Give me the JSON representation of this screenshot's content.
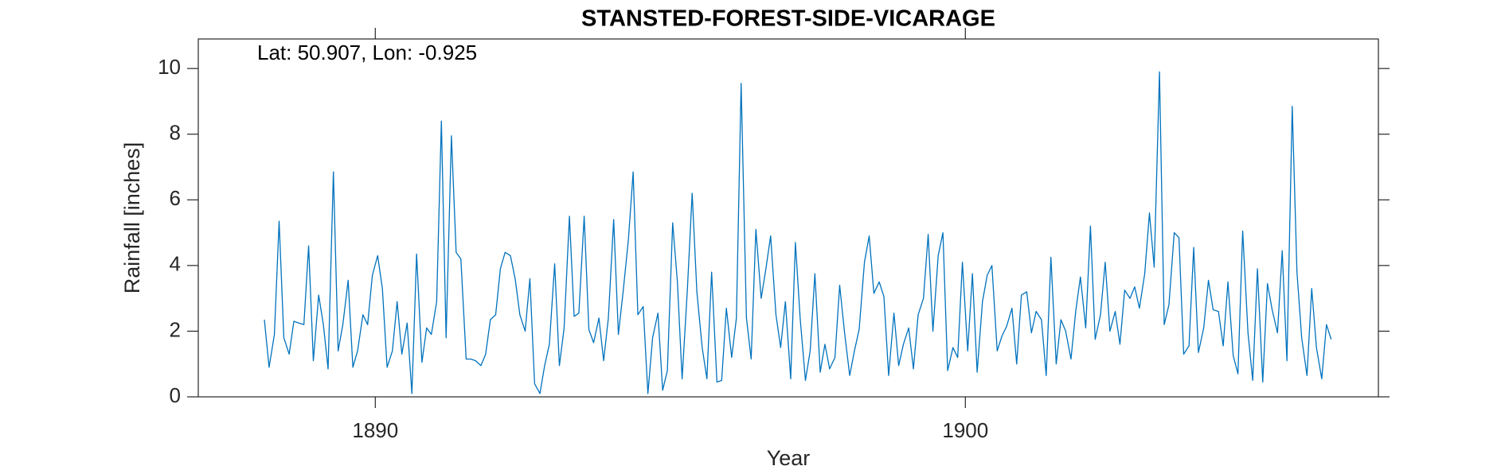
{
  "chart_data": {
    "type": "line",
    "title": "STANSTED-FOREST-SIDE-VICARAGE",
    "annotation": "Lat: 50.907, Lon: -0.925",
    "xlabel": "Year",
    "ylabel": "Rainfall [inches]",
    "color": "#0072bd",
    "xlim": [
      1887,
      1907
    ],
    "ylim": [
      0,
      10.9
    ],
    "xticks": [
      1890,
      1900
    ],
    "yticks": [
      0,
      2,
      4,
      6,
      8,
      10
    ],
    "x": [
      1888.12,
      1888.2,
      1888.29,
      1888.37,
      1888.45,
      1888.54,
      1888.62,
      1888.7,
      1888.79,
      1888.87,
      1888.95,
      1889.04,
      1889.12,
      1889.2,
      1889.29,
      1889.37,
      1889.45,
      1889.54,
      1889.62,
      1889.7,
      1889.79,
      1889.87,
      1889.95,
      1890.04,
      1890.12,
      1890.2,
      1890.29,
      1890.37,
      1890.45,
      1890.54,
      1890.62,
      1890.7,
      1890.79,
      1890.87,
      1890.95,
      1891.04,
      1891.12,
      1891.2,
      1891.29,
      1891.37,
      1891.45,
      1891.54,
      1891.62,
      1891.7,
      1891.79,
      1891.87,
      1891.95,
      1892.04,
      1892.12,
      1892.2,
      1892.29,
      1892.37,
      1892.45,
      1892.54,
      1892.62,
      1892.7,
      1892.79,
      1892.87,
      1892.95,
      1893.04,
      1893.12,
      1893.2,
      1893.29,
      1893.37,
      1893.45,
      1893.54,
      1893.62,
      1893.7,
      1893.79,
      1893.87,
      1893.95,
      1894.04,
      1894.12,
      1894.2,
      1894.29,
      1894.37,
      1894.45,
      1894.54,
      1894.62,
      1894.7,
      1894.79,
      1894.87,
      1894.95,
      1895.04,
      1895.12,
      1895.2,
      1895.29,
      1895.37,
      1895.45,
      1895.54,
      1895.62,
      1895.7,
      1895.79,
      1895.87,
      1895.95,
      1896.04,
      1896.12,
      1896.2,
      1896.29,
      1896.37,
      1896.45,
      1896.54,
      1896.62,
      1896.7,
      1896.79,
      1896.87,
      1896.95,
      1897.04,
      1897.12,
      1897.2,
      1897.29,
      1897.37,
      1897.45,
      1897.54,
      1897.62,
      1897.7,
      1897.79,
      1897.87,
      1897.95,
      1898.04,
      1898.12,
      1898.2,
      1898.29,
      1898.37,
      1898.45,
      1898.54,
      1898.62,
      1898.7,
      1898.79,
      1898.87,
      1898.95,
      1899.04,
      1899.12,
      1899.2,
      1899.29,
      1899.37,
      1899.45,
      1899.54,
      1899.62,
      1899.7,
      1899.79,
      1899.87,
      1899.95,
      1900.04,
      1900.12,
      1900.2,
      1900.29,
      1900.37,
      1900.45,
      1900.54,
      1900.62,
      1900.7,
      1900.79,
      1900.87,
      1900.95,
      1901.04,
      1901.12,
      1901.2,
      1901.29,
      1901.37,
      1901.45,
      1901.54,
      1901.62,
      1901.7,
      1901.79,
      1901.87,
      1901.95,
      1902.04,
      1902.12,
      1902.2,
      1902.29,
      1902.37,
      1902.45,
      1902.54,
      1902.62,
      1902.7,
      1902.79,
      1902.87,
      1902.95,
      1903.04,
      1903.12,
      1903.2,
      1903.29,
      1903.37,
      1903.45,
      1903.54,
      1903.62,
      1903.7,
      1903.79,
      1903.87,
      1903.95,
      1904.04,
      1904.12,
      1904.2,
      1904.29,
      1904.37,
      1904.45,
      1904.54,
      1904.62,
      1904.7,
      1904.79,
      1904.87,
      1904.95,
      1905.04,
      1905.12,
      1905.2,
      1905.29,
      1905.37,
      1905.45,
      1905.54,
      1905.62,
      1905.7,
      1905.79,
      1905.87,
      1905.95,
      1906.04,
      1906.12,
      1906.2
    ],
    "values": [
      2.35,
      0.9,
      1.9,
      5.35,
      1.8,
      1.3,
      2.3,
      2.25,
      2.2,
      4.6,
      1.1,
      3.1,
      2.2,
      0.85,
      6.85,
      1.4,
      2.2,
      3.55,
      0.9,
      1.4,
      2.5,
      2.2,
      3.7,
      4.3,
      3.3,
      0.9,
      1.4,
      2.9,
      1.3,
      2.25,
      0.1,
      4.35,
      1.05,
      2.1,
      1.9,
      2.9,
      8.4,
      1.8,
      7.95,
      4.4,
      4.2,
      1.15,
      1.15,
      1.1,
      0.95,
      1.3,
      2.35,
      2.5,
      3.9,
      4.4,
      4.3,
      3.6,
      2.5,
      2.0,
      3.6,
      0.4,
      0.1,
      0.95,
      1.6,
      4.05,
      0.95,
      2.1,
      5.5,
      2.45,
      2.55,
      5.5,
      2.05,
      1.65,
      2.4,
      1.1,
      2.4,
      5.4,
      1.9,
      3.2,
      4.8,
      6.85,
      2.5,
      2.75,
      0.1,
      1.8,
      2.55,
      0.2,
      0.8,
      5.3,
      3.5,
      0.55,
      3.3,
      6.2,
      3.2,
      1.5,
      0.55,
      3.8,
      0.45,
      0.5,
      2.7,
      1.2,
      2.4,
      9.55,
      2.4,
      1.15,
      5.1,
      3.0,
      3.9,
      4.9,
      2.5,
      1.5,
      2.9,
      0.55,
      4.7,
      2.4,
      0.5,
      1.4,
      3.75,
      0.75,
      1.6,
      0.85,
      1.2,
      3.4,
      2.0,
      0.65,
      1.4,
      2.05,
      4.1,
      4.9,
      3.15,
      3.5,
      3.05,
      0.65,
      2.55,
      0.95,
      1.6,
      2.1,
      0.85,
      2.5,
      3.0,
      4.95,
      2.0,
      4.3,
      5.0,
      0.8,
      1.5,
      1.2,
      4.1,
      1.4,
      3.75,
      0.75,
      2.9,
      3.7,
      4.0,
      1.4,
      1.85,
      2.15,
      2.7,
      1.0,
      3.1,
      3.2,
      1.95,
      2.6,
      2.35,
      0.65,
      4.25,
      1.0,
      2.35,
      2.0,
      1.15,
      2.6,
      3.65,
      2.1,
      5.2,
      1.75,
      2.5,
      4.1,
      2.0,
      2.6,
      1.6,
      3.25,
      3.0,
      3.35,
      2.7,
      3.75,
      5.6,
      3.95,
      9.9,
      2.2,
      2.8,
      5.0,
      4.85,
      1.3,
      1.55,
      4.55,
      1.35,
      2.1,
      3.55,
      2.65,
      2.6,
      1.55,
      3.5,
      1.25,
      0.7,
      5.05,
      1.95,
      0.5,
      3.9,
      0.45,
      3.45,
      2.65,
      1.95,
      4.45,
      1.1,
      8.85,
      3.8,
      1.8,
      0.65,
      3.3,
      1.5,
      0.55,
      2.2,
      1.75
    ]
  }
}
